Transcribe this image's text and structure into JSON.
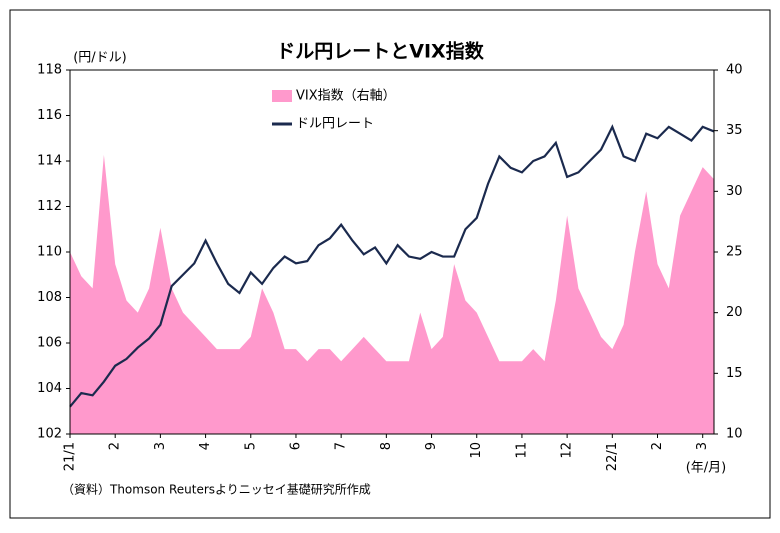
{
  "chart_data": {
    "type": "combo",
    "title": "ドル円レートとVIX指数",
    "y_label": "(円/ドル)",
    "x_label": "(年/月)",
    "source": "（資料）Thomson Reutersよりニッセイ基礎研究所作成",
    "categories": [
      "21/1",
      null,
      null,
      null,
      "2",
      null,
      null,
      null,
      "3",
      null,
      null,
      null,
      "4",
      null,
      null,
      null,
      "5",
      null,
      null,
      null,
      "6",
      null,
      null,
      null,
      "7",
      null,
      null,
      null,
      "8",
      null,
      null,
      null,
      "9",
      null,
      null,
      null,
      "10",
      null,
      null,
      null,
      "11",
      null,
      null,
      null,
      "12",
      null,
      null,
      null,
      "22/1",
      null,
      null,
      null,
      "2",
      null,
      null,
      null,
      "3",
      null
    ],
    "series": [
      {
        "name": "VIX指数（右軸）",
        "type": "area",
        "axis": "y2",
        "color": "#ff99cc",
        "values": [
          25,
          23,
          22,
          33,
          24,
          21,
          20,
          22,
          27,
          22,
          20,
          19,
          18,
          17,
          17,
          17,
          18,
          22,
          20,
          17,
          17,
          16,
          17,
          17,
          16,
          17,
          18,
          17,
          16,
          16,
          16,
          20,
          17,
          18,
          24,
          21,
          20,
          18,
          16,
          16,
          16,
          17,
          16,
          21,
          28,
          22,
          20,
          18,
          17,
          19,
          25,
          30,
          24,
          22,
          28,
          30,
          32,
          31
        ]
      },
      {
        "name": "ドル円レート",
        "type": "line",
        "color": "#1b2a4e",
        "values": [
          103.2,
          103.8,
          103.7,
          104.3,
          105.0,
          105.3,
          105.8,
          106.2,
          106.8,
          108.5,
          109.0,
          109.5,
          110.5,
          109.5,
          108.6,
          108.2,
          109.1,
          108.6,
          109.3,
          109.8,
          109.5,
          109.6,
          110.3,
          110.6,
          111.2,
          110.5,
          109.9,
          110.2,
          109.5,
          110.3,
          109.8,
          109.7,
          110.0,
          109.8,
          109.8,
          111.0,
          111.5,
          113.0,
          114.2,
          113.7,
          113.5,
          114.0,
          114.2,
          114.8,
          113.3,
          113.5,
          114.0,
          114.5,
          115.5,
          114.2,
          114.0,
          115.2,
          115.0,
          115.5,
          115.2,
          114.9,
          115.5,
          115.3
        ]
      }
    ],
    "ylim": [
      102,
      118
    ],
    "yticks": [
      102,
      104,
      106,
      108,
      110,
      112,
      114,
      116,
      118
    ],
    "y2lim": [
      10,
      40
    ],
    "y2ticks": [
      10,
      15,
      20,
      25,
      30,
      35,
      40
    ],
    "grid": false
  }
}
